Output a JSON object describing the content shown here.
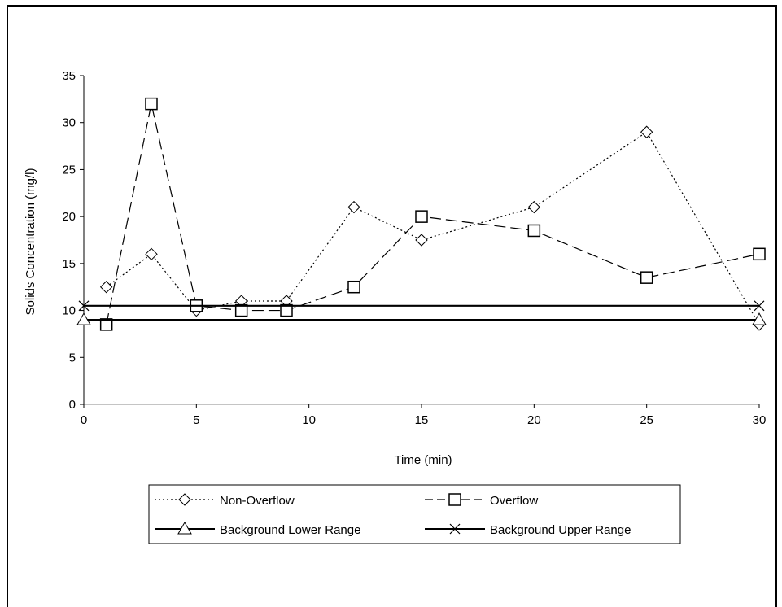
{
  "chart_data": {
    "type": "line",
    "title": "",
    "xlabel": "Time (min)",
    "ylabel": "Solids Concentration (mg/l)",
    "xlim": [
      0,
      30
    ],
    "ylim": [
      0,
      35
    ],
    "xticks": [
      0,
      5,
      10,
      15,
      20,
      25,
      30
    ],
    "yticks": [
      0,
      5,
      10,
      15,
      20,
      25,
      30,
      35
    ],
    "grid": false,
    "legend_position": "bottom",
    "series": [
      {
        "name": "Non-Overflow",
        "marker": "diamond",
        "line_style": "dotted",
        "color": "#000000",
        "points": [
          [
            1,
            12.5
          ],
          [
            3,
            16
          ],
          [
            5,
            10
          ],
          [
            7,
            11
          ],
          [
            9,
            11
          ],
          [
            12,
            21
          ],
          [
            15,
            17.5
          ],
          [
            20,
            21
          ],
          [
            25,
            29
          ],
          [
            30,
            8.5
          ]
        ]
      },
      {
        "name": "Overflow",
        "marker": "square",
        "line_style": "dashed",
        "color": "#000000",
        "points": [
          [
            1,
            8.5
          ],
          [
            3,
            32
          ],
          [
            5,
            10.5
          ],
          [
            7,
            10
          ],
          [
            9,
            10
          ],
          [
            12,
            12.5
          ],
          [
            15,
            20
          ],
          [
            20,
            18.5
          ],
          [
            25,
            13.5
          ],
          [
            30,
            16
          ]
        ]
      },
      {
        "name": "Background Lower Range",
        "marker": "triangle",
        "line_style": "solid",
        "color": "#000000",
        "points": [
          [
            0,
            9
          ],
          [
            30,
            9
          ]
        ]
      },
      {
        "name": "Background Upper Range",
        "marker": "x",
        "line_style": "solid",
        "color": "#000000",
        "points": [
          [
            0,
            10.5
          ],
          [
            30,
            10.5
          ]
        ]
      }
    ]
  }
}
